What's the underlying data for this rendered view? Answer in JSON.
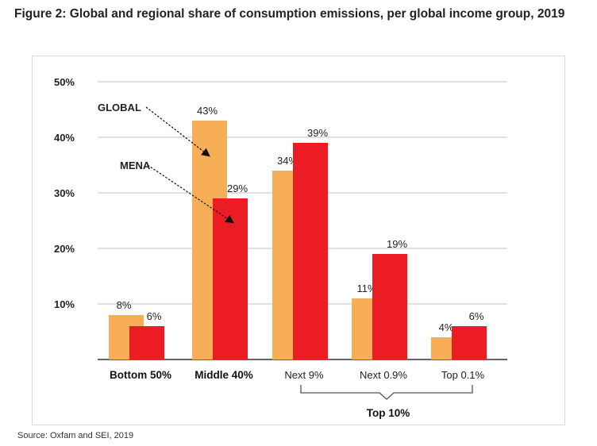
{
  "title": "Figure 2: Global and regional share of consumption emissions, per global income group, 2019",
  "source": "Source: Oxfam and SEI, 2019",
  "colors": {
    "global": "#F7AE57",
    "mena": "#EC1C24",
    "grid": "#d6d6d6",
    "axis": "#333333"
  },
  "chart_data": {
    "type": "bar",
    "title": "Figure 2: Global and regional share of consumption emissions, per global income group, 2019",
    "xlabel": "",
    "ylabel": "",
    "ylim": [
      0,
      50
    ],
    "yticks": [
      10,
      20,
      30,
      40,
      50
    ],
    "ytick_labels": [
      "10%",
      "20%",
      "30%",
      "40%",
      "50%"
    ],
    "categories": [
      "Bottom 50%",
      "Middle 40%",
      "Next 9%",
      "Next 0.9%",
      "Top 0.1%"
    ],
    "bold_categories": [
      true,
      true,
      false,
      false,
      false
    ],
    "series": [
      {
        "name": "GLOBAL",
        "values": [
          8,
          43,
          34,
          11,
          4
        ],
        "labels": [
          "8%",
          "43%",
          "34%",
          "11%",
          "4%"
        ]
      },
      {
        "name": "MENA",
        "values": [
          6,
          29,
          39,
          19,
          6
        ],
        "labels": [
          "6%",
          "29%",
          "39%",
          "19%",
          "6%"
        ]
      }
    ],
    "annotations": [
      {
        "text": "GLOBAL",
        "points_to": "GLOBAL",
        "category": "Middle 40%"
      },
      {
        "text": "MENA",
        "points_to": "MENA",
        "category": "Middle 40%"
      }
    ],
    "group_bracket": {
      "label": "Top 10%",
      "spans": [
        "Next 9%",
        "Next 0.9%",
        "Top 0.1%"
      ]
    },
    "grid": true,
    "legend": "none"
  }
}
